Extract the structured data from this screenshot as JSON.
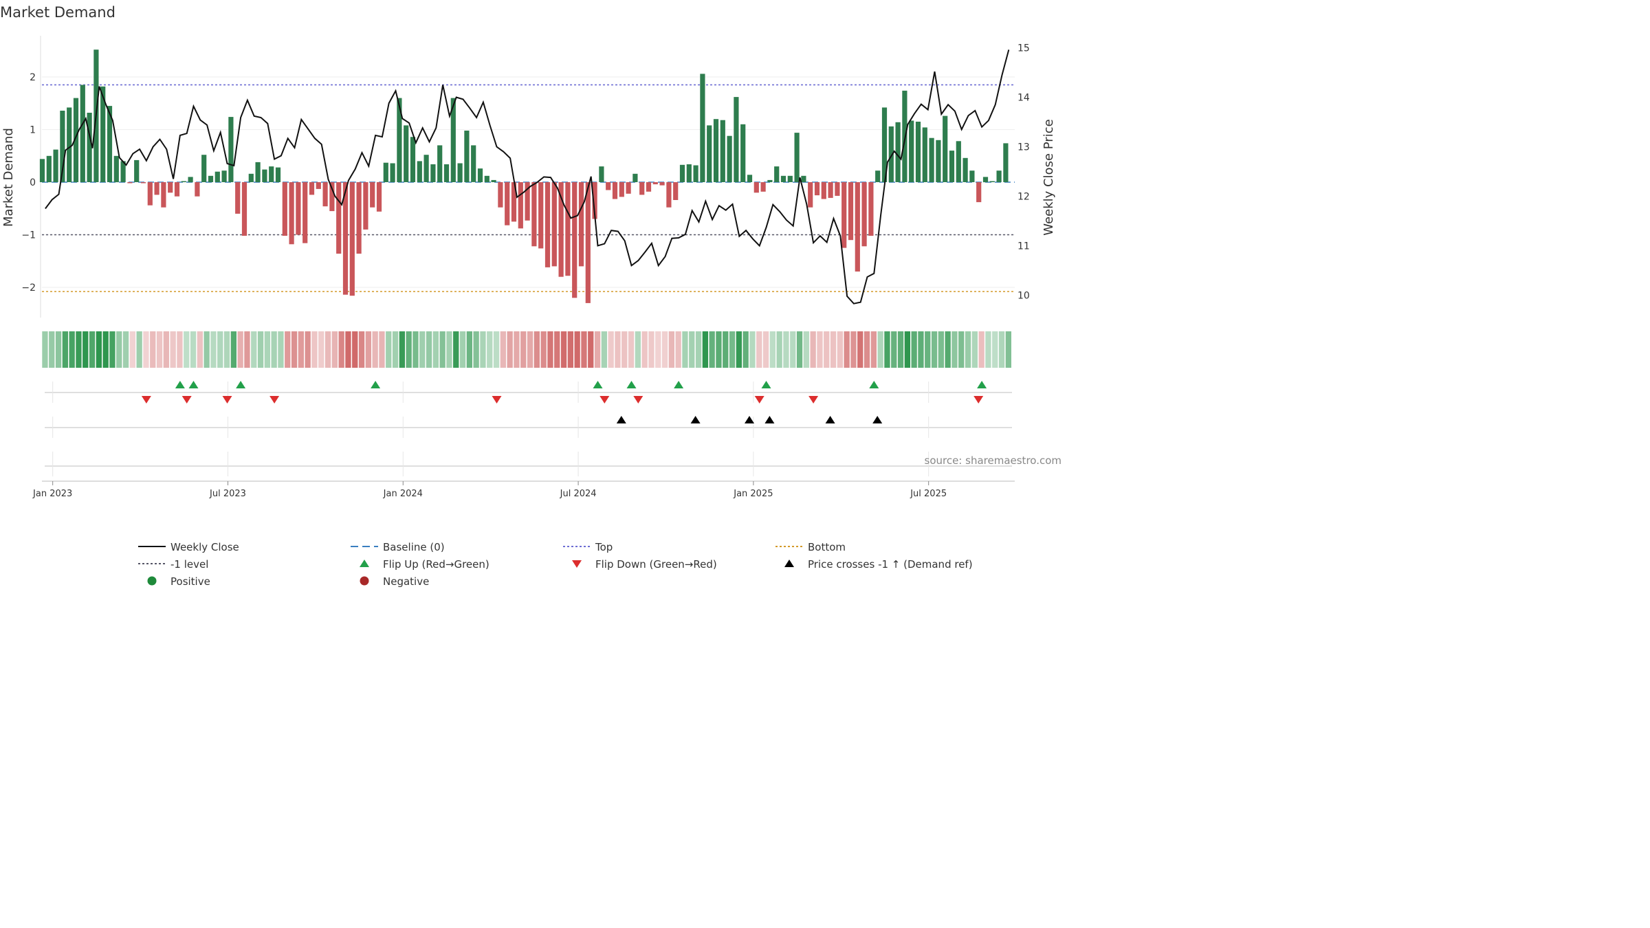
{
  "chart_data": {
    "type": "bar",
    "title": "Market Demand",
    "ylabel": "Market Demand",
    "y2label": "Weekly Close Price",
    "ylim": [
      -2.6,
      2.6
    ],
    "y2lim": [
      9.6,
      15.2
    ],
    "yticks": [
      {
        "v": 2,
        "label": "2"
      },
      {
        "v": 1,
        "label": "1"
      },
      {
        "v": 0,
        "label": "0"
      },
      {
        "v": -1,
        "label": "−1"
      },
      {
        "v": -2,
        "label": "−2"
      }
    ],
    "y2ticks": [
      {
        "v": 15,
        "label": "15"
      },
      {
        "v": 14,
        "label": "14"
      },
      {
        "v": 13,
        "label": "13"
      },
      {
        "v": 12,
        "label": "12"
      },
      {
        "v": 11,
        "label": "11"
      },
      {
        "v": 10,
        "label": "10"
      }
    ],
    "x_tick_labels": [
      {
        "w": 1.6,
        "label": "Jan 2023"
      },
      {
        "w": 27.6,
        "label": "Jul 2023"
      },
      {
        "w": 53.6,
        "label": "Jan 2024"
      },
      {
        "w": 79.6,
        "label": "Jul 2024"
      },
      {
        "w": 105.6,
        "label": "Jan 2025"
      },
      {
        "w": 131.6,
        "label": "Jul 2025"
      }
    ],
    "reference_lines": {
      "top": 1.85,
      "minus_one": -1.0,
      "bottom": -2.08,
      "baseline": 0
    },
    "demand": [
      0.44,
      0.5,
      0.62,
      1.36,
      1.42,
      1.6,
      1.85,
      1.32,
      2.52,
      1.82,
      1.45,
      0.5,
      0.4,
      -0.02,
      0.42,
      -0.02,
      -0.44,
      -0.24,
      -0.48,
      -0.2,
      -0.27,
      0.02,
      0.1,
      -0.27,
      0.52,
      0.12,
      0.2,
      0.22,
      1.24,
      -0.6,
      -1.02,
      0.16,
      0.38,
      0.24,
      0.3,
      0.28,
      -1.02,
      -1.18,
      -1.0,
      -1.16,
      -0.24,
      -0.13,
      -0.46,
      -0.55,
      -1.36,
      -2.14,
      -2.16,
      -1.36,
      -0.9,
      -0.48,
      -0.56,
      0.37,
      0.36,
      1.6,
      1.08,
      0.86,
      0.4,
      0.52,
      0.34,
      0.7,
      0.34,
      1.6,
      0.36,
      0.98,
      0.7,
      0.26,
      0.12,
      0.04,
      -0.48,
      -0.82,
      -0.75,
      -0.88,
      -0.73,
      -1.22,
      -1.26,
      -1.62,
      -1.6,
      -1.8,
      -1.78,
      -2.2,
      -1.6,
      -2.3,
      -0.7,
      0.3,
      -0.15,
      -0.32,
      -0.28,
      -0.22,
      0.16,
      -0.24,
      -0.18,
      -0.04,
      -0.06,
      -0.48,
      -0.34,
      0.33,
      0.34,
      0.32,
      2.06,
      1.08,
      1.2,
      1.18,
      0.88,
      1.62,
      1.1,
      0.14,
      -0.2,
      -0.18,
      0.04,
      0.3,
      0.12,
      0.12,
      0.94,
      0.12,
      -0.48,
      -0.25,
      -0.32,
      -0.3,
      -0.26,
      -1.25,
      -1.1,
      -1.7,
      -1.22,
      -1.02,
      0.22,
      1.42,
      1.06,
      1.14,
      1.74,
      1.17,
      1.15,
      1.04,
      0.84,
      0.8,
      1.26,
      0.6,
      0.78,
      0.46,
      0.22,
      -0.38,
      0.1,
      0.02,
      0.22,
      0.74
    ],
    "close_points": [
      [
        0.5,
        11.75
      ],
      [
        1.5,
        11.93
      ],
      [
        2.5,
        12.04
      ],
      [
        3.5,
        12.93
      ],
      [
        4.5,
        13.03
      ],
      [
        5.5,
        13.34
      ],
      [
        6.5,
        13.57
      ],
      [
        7.5,
        12.97
      ],
      [
        8.5,
        14.22
      ],
      [
        9.5,
        13.85
      ],
      [
        10.5,
        13.53
      ],
      [
        11.5,
        12.78
      ],
      [
        12.5,
        12.63
      ],
      [
        13.5,
        12.86
      ],
      [
        14.5,
        12.95
      ],
      [
        15.5,
        12.72
      ],
      [
        16.5,
        13.0
      ],
      [
        17.5,
        13.15
      ],
      [
        18.5,
        12.95
      ],
      [
        19.5,
        12.35
      ],
      [
        20.5,
        13.23
      ],
      [
        21.5,
        13.27
      ],
      [
        22.5,
        13.82
      ],
      [
        23.5,
        13.54
      ],
      [
        24.5,
        13.44
      ],
      [
        25.5,
        12.92
      ],
      [
        26.5,
        13.29
      ],
      [
        27.5,
        12.66
      ],
      [
        28.5,
        12.62
      ],
      [
        29.5,
        13.59
      ],
      [
        30.5,
        13.94
      ],
      [
        31.5,
        13.62
      ],
      [
        32.5,
        13.59
      ],
      [
        33.5,
        13.47
      ],
      [
        34.5,
        12.75
      ],
      [
        35.5,
        12.82
      ],
      [
        36.5,
        13.17
      ],
      [
        37.5,
        12.98
      ],
      [
        38.5,
        13.55
      ],
      [
        39.5,
        13.36
      ],
      [
        40.5,
        13.17
      ],
      [
        41.5,
        13.05
      ],
      [
        42.5,
        12.34
      ],
      [
        43.5,
        12.0
      ],
      [
        44.5,
        11.83
      ],
      [
        45.5,
        12.32
      ],
      [
        46.5,
        12.55
      ],
      [
        47.5,
        12.88
      ],
      [
        48.5,
        12.61
      ],
      [
        49.5,
        13.23
      ],
      [
        50.5,
        13.2
      ],
      [
        51.5,
        13.88
      ],
      [
        52.5,
        14.13
      ],
      [
        53.5,
        13.57
      ],
      [
        54.5,
        13.48
      ],
      [
        55.5,
        13.08
      ],
      [
        56.5,
        13.38
      ],
      [
        57.5,
        13.1
      ],
      [
        58.5,
        13.38
      ],
      [
        59.5,
        14.25
      ],
      [
        60.5,
        13.62
      ],
      [
        61.5,
        14.0
      ],
      [
        62.5,
        13.96
      ],
      [
        63.5,
        13.78
      ],
      [
        64.5,
        13.59
      ],
      [
        65.5,
        13.9
      ],
      [
        66.5,
        13.43
      ],
      [
        67.5,
        13.0
      ],
      [
        68.5,
        12.9
      ],
      [
        69.5,
        12.77
      ],
      [
        70.5,
        11.98
      ],
      [
        71.5,
        12.08
      ],
      [
        72.5,
        12.2
      ],
      [
        73.5,
        12.28
      ],
      [
        74.5,
        12.39
      ],
      [
        75.5,
        12.38
      ],
      [
        76.5,
        12.17
      ],
      [
        77.5,
        11.82
      ],
      [
        78.5,
        11.56
      ],
      [
        79.5,
        11.61
      ],
      [
        80.5,
        11.89
      ],
      [
        81.5,
        12.4
      ],
      [
        82.5,
        11.0
      ],
      [
        83.5,
        11.04
      ],
      [
        84.5,
        11.31
      ],
      [
        85.5,
        11.29
      ],
      [
        86.5,
        11.1
      ],
      [
        87.5,
        10.6
      ],
      [
        88.5,
        10.7
      ],
      [
        89.5,
        10.87
      ],
      [
        90.5,
        11.05
      ],
      [
        91.5,
        10.6
      ],
      [
        92.5,
        10.78
      ],
      [
        93.5,
        11.15
      ],
      [
        94.5,
        11.16
      ],
      [
        95.5,
        11.23
      ],
      [
        96.5,
        11.71
      ],
      [
        97.5,
        11.48
      ],
      [
        98.5,
        11.9
      ],
      [
        99.5,
        11.53
      ],
      [
        100.5,
        11.81
      ],
      [
        101.5,
        11.72
      ],
      [
        102.5,
        11.84
      ],
      [
        103.5,
        11.19
      ],
      [
        104.5,
        11.31
      ],
      [
        105.5,
        11.14
      ],
      [
        106.5,
        11.0
      ],
      [
        107.5,
        11.37
      ],
      [
        108.5,
        11.83
      ],
      [
        109.5,
        11.69
      ],
      [
        110.5,
        11.52
      ],
      [
        111.5,
        11.4
      ],
      [
        112.5,
        12.38
      ],
      [
        113.5,
        11.84
      ],
      [
        114.5,
        11.06
      ],
      [
        115.5,
        11.2
      ],
      [
        116.5,
        11.07
      ],
      [
        117.5,
        11.55
      ],
      [
        118.5,
        11.2
      ],
      [
        119.5,
        9.98
      ],
      [
        120.5,
        9.83
      ],
      [
        121.5,
        9.86
      ],
      [
        122.5,
        10.37
      ],
      [
        123.5,
        10.44
      ],
      [
        124.5,
        11.62
      ],
      [
        125.5,
        12.69
      ],
      [
        126.5,
        12.91
      ],
      [
        127.5,
        12.75
      ],
      [
        128.5,
        13.45
      ],
      [
        129.5,
        13.67
      ],
      [
        130.5,
        13.86
      ],
      [
        131.5,
        13.75
      ],
      [
        132.5,
        14.52
      ],
      [
        133.5,
        13.66
      ],
      [
        134.5,
        13.85
      ],
      [
        135.5,
        13.72
      ],
      [
        136.5,
        13.35
      ],
      [
        137.5,
        13.63
      ],
      [
        138.5,
        13.73
      ],
      [
        139.5,
        13.4
      ],
      [
        140.5,
        13.53
      ],
      [
        141.5,
        13.85
      ],
      [
        142.5,
        14.45
      ],
      [
        143.5,
        14.96
      ]
    ],
    "flip_up_weeks": [
      20.5,
      22.5,
      29.5,
      49.5,
      82.5,
      87.5,
      94.5,
      107.5,
      123.5,
      139.5
    ],
    "flip_down_weeks": [
      15.5,
      21.5,
      27.5,
      34.5,
      67.5,
      83.5,
      88.5,
      106.5,
      114.5,
      139.0
    ],
    "price_cross_weeks": [
      86.0,
      97.0,
      105.0,
      108.0,
      117.0,
      124.0
    ],
    "legend": [
      {
        "key": "weekly-close",
        "label": "Weekly Close",
        "color": "#111111"
      },
      {
        "key": "baseline",
        "label": "Baseline (0)",
        "color": "#3a7fc0"
      },
      {
        "key": "top",
        "label": "Top",
        "color": "#6e6ed4"
      },
      {
        "key": "bottom",
        "label": "Bottom",
        "color": "#d49a2a"
      },
      {
        "key": "minus-one",
        "label": "-1 level",
        "color": "#555566"
      },
      {
        "key": "flip-up",
        "label": "Flip Up (Red→Green)",
        "color": "#22a04a"
      },
      {
        "key": "flip-down",
        "label": "Flip Down (Green→Red)",
        "color": "#dc2d2d"
      },
      {
        "key": "price-cross",
        "label": "Price crosses -1 ↑ (Demand ref)",
        "color": "#000000"
      },
      {
        "key": "positive",
        "label": "Positive",
        "color": "#1e8a3a"
      },
      {
        "key": "negative",
        "label": "Negative",
        "color": "#a82828"
      }
    ],
    "colors": {
      "pos_bar": "#2e7d4e",
      "neg_bar": "#c9565a",
      "line": "#111111"
    }
  },
  "source_note": "source: sharemaestro.com"
}
